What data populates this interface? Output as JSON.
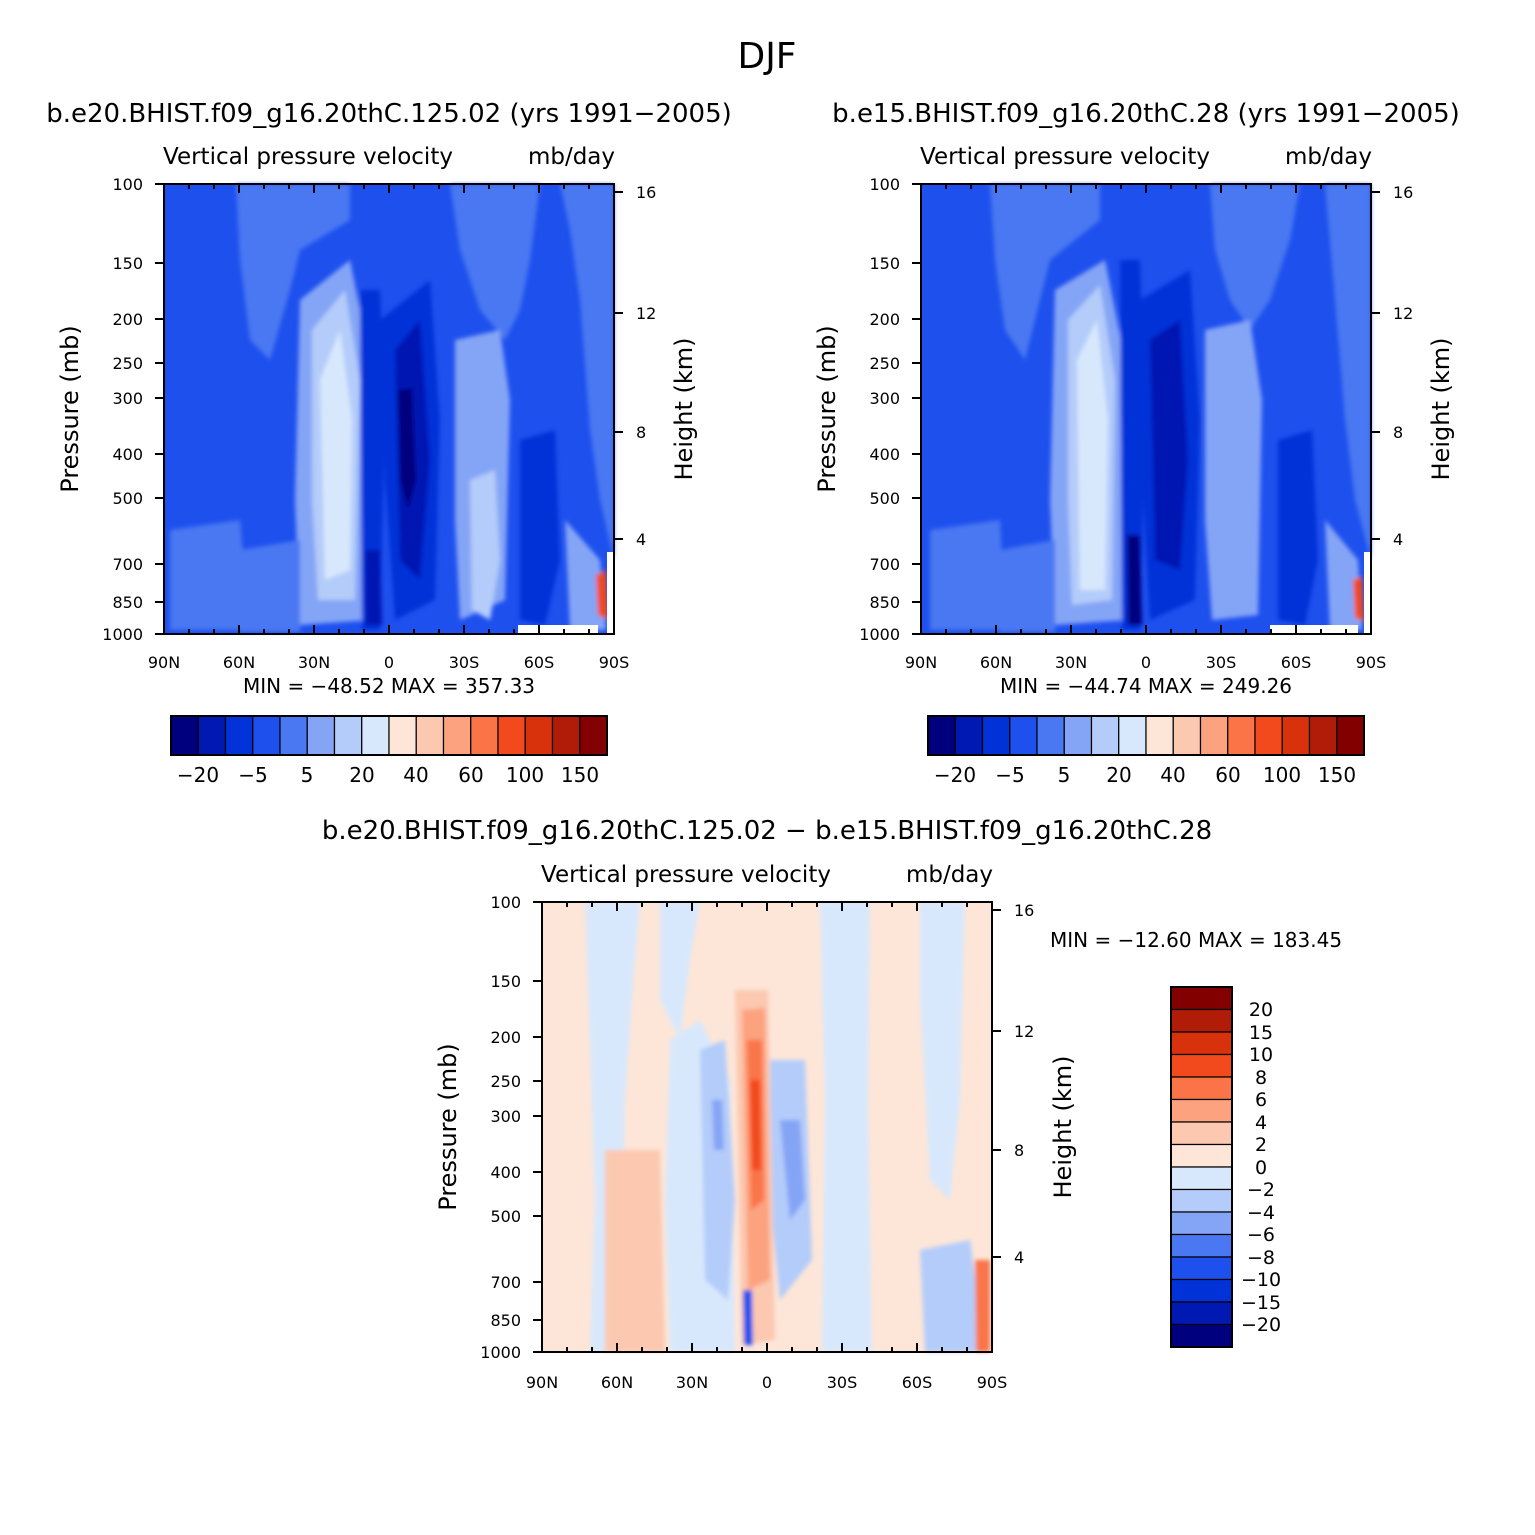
{
  "figure_title": "DJF",
  "colors": {
    "main_scale": [
      "#00007f",
      "#0019b2",
      "#0032d8",
      "#1e50ee",
      "#4a78f2",
      "#84a4f6",
      "#b4ccfa",
      "#d8e8fc",
      "#fde6d8",
      "#fcc8b0",
      "#fca27e",
      "#fa7448",
      "#f24a1c",
      "#d8320c",
      "#b01c08",
      "#820000"
    ],
    "diff_scale": [
      "#00007f",
      "#0019b2",
      "#0032d8",
      "#1e50ee",
      "#4a78f2",
      "#84a4f6",
      "#b4ccfa",
      "#d8e8fc",
      "#fde6d8",
      "#fcc8b0",
      "#fca27e",
      "#fa7448",
      "#f24a1c",
      "#d8320c",
      "#b01c08",
      "#820000"
    ]
  },
  "panels": [
    {
      "title": "b.e20.BHIST.f09_g16.20thC.125.02 (yrs 1991−2005)",
      "subtitle_left": "Vertical pressure velocity",
      "subtitle_right": "mb/day",
      "ylabel": "Pressure (mb)",
      "y2label": "Height (km)",
      "xticks": [
        "90N",
        "60N",
        "30N",
        "0",
        "30S",
        "60S",
        "90S"
      ],
      "yticks": [
        "100",
        "150",
        "200",
        "250",
        "300",
        "400",
        "500",
        "700",
        "850",
        "1000"
      ],
      "y2ticks": [
        "16",
        "12",
        "8",
        "4"
      ],
      "stats": "MIN = −48.52   MAX = 357.33",
      "colorbar_labels": [
        "−20",
        "−5",
        "5",
        "20",
        "40",
        "60",
        "100",
        "150"
      ]
    },
    {
      "title": "b.e15.BHIST.f09_g16.20thC.28 (yrs 1991−2005)",
      "subtitle_left": "Vertical pressure velocity",
      "subtitle_right": "mb/day",
      "ylabel": "Pressure (mb)",
      "y2label": "Height (km)",
      "xticks": [
        "90N",
        "60N",
        "30N",
        "0",
        "30S",
        "60S",
        "90S"
      ],
      "yticks": [
        "100",
        "150",
        "200",
        "250",
        "300",
        "400",
        "500",
        "700",
        "850",
        "1000"
      ],
      "y2ticks": [
        "16",
        "12",
        "8",
        "4"
      ],
      "stats": "MIN = −44.74   MAX = 249.26",
      "colorbar_labels": [
        "−20",
        "−5",
        "5",
        "20",
        "40",
        "60",
        "100",
        "150"
      ]
    },
    {
      "title": "b.e20.BHIST.f09_g16.20thC.125.02 − b.e15.BHIST.f09_g16.20thC.28",
      "subtitle_left": "Vertical pressure velocity",
      "subtitle_right": "mb/day",
      "ylabel": "Pressure (mb)",
      "y2label": "Height (km)",
      "xticks": [
        "90N",
        "60N",
        "30N",
        "0",
        "30S",
        "60S",
        "90S"
      ],
      "yticks": [
        "100",
        "150",
        "200",
        "250",
        "300",
        "400",
        "500",
        "700",
        "850",
        "1000"
      ],
      "y2ticks": [
        "16",
        "12",
        "8",
        "4"
      ],
      "stats": "MIN = −12.60   MAX = 183.45",
      "colorbar_labels": [
        "20",
        "15",
        "10",
        "8",
        "6",
        "4",
        "2",
        "0",
        "−2",
        "−4",
        "−6",
        "−8",
        "−10",
        "−15",
        "−20"
      ]
    }
  ],
  "chart_data": [
    {
      "type": "heatmap",
      "title": "b.e20.BHIST.f09_g16.20thC.125.02 (yrs 1991−2005)",
      "units": "mb/day",
      "x_axis": [
        "90N",
        "60N",
        "30N",
        "0",
        "30S",
        "60S",
        "90S"
      ],
      "y_axis_pressure_mb": [
        100,
        150,
        200,
        250,
        300,
        400,
        500,
        700,
        850,
        1000
      ],
      "y_axis_height_km": [
        16,
        12,
        8,
        4
      ],
      "min": -48.52,
      "max": 357.33,
      "contour_levels": [
        -20,
        -5,
        5,
        20,
        40,
        60,
        100,
        150
      ]
    },
    {
      "type": "heatmap",
      "title": "b.e15.BHIST.f09_g16.20thC.28 (yrs 1991−2005)",
      "units": "mb/day",
      "x_axis": [
        "90N",
        "60N",
        "30N",
        "0",
        "30S",
        "60S",
        "90S"
      ],
      "y_axis_pressure_mb": [
        100,
        150,
        200,
        250,
        300,
        400,
        500,
        700,
        850,
        1000
      ],
      "y_axis_height_km": [
        16,
        12,
        8,
        4
      ],
      "min": -44.74,
      "max": 249.26,
      "contour_levels": [
        -20,
        -5,
        5,
        20,
        40,
        60,
        100,
        150
      ]
    },
    {
      "type": "heatmap",
      "title": "b.e20.BHIST.f09_g16.20thC.125.02 − b.e15.BHIST.f09_g16.20thC.28",
      "units": "mb/day",
      "x_axis": [
        "90N",
        "60N",
        "30N",
        "0",
        "30S",
        "60S",
        "90S"
      ],
      "y_axis_pressure_mb": [
        100,
        150,
        200,
        250,
        300,
        400,
        500,
        700,
        850,
        1000
      ],
      "y_axis_height_km": [
        16,
        12,
        8,
        4
      ],
      "min": -12.6,
      "max": 183.45,
      "contour_levels": [
        -20,
        -15,
        -10,
        -8,
        -6,
        -4,
        -2,
        0,
        2,
        4,
        6,
        8,
        10,
        15,
        20
      ]
    }
  ]
}
